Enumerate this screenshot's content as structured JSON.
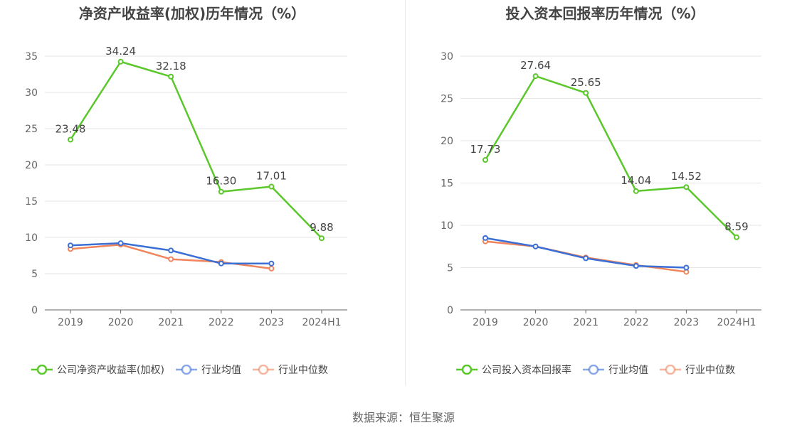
{
  "footer": "数据来源：恒生聚源",
  "chart_data": [
    {
      "type": "line",
      "title": "净资产收益率(加权)历年情况（%）",
      "categories": [
        "2019",
        "2020",
        "2021",
        "2022",
        "2023",
        "2024H1"
      ],
      "ylim": [
        0,
        35
      ],
      "yticks": [
        0,
        5,
        10,
        15,
        20,
        25,
        30,
        35
      ],
      "grid": true,
      "legend_position": "bottom",
      "series": [
        {
          "name": "公司净资产收益率(加权)",
          "color": "#5ac72a",
          "values": [
            23.48,
            34.24,
            32.18,
            16.3,
            17.01,
            9.88
          ],
          "labels": [
            "23.48",
            "34.24",
            "32.18",
            "16.30",
            "17.01",
            "9.88"
          ]
        },
        {
          "name": "行业均值",
          "color": "#3a6fd6",
          "values": [
            8.9,
            9.2,
            8.2,
            6.4,
            6.4,
            null
          ]
        },
        {
          "name": "行业中位数",
          "color": "#f0845a",
          "values": [
            8.4,
            9.0,
            7.0,
            6.6,
            5.7,
            null
          ]
        }
      ]
    },
    {
      "type": "line",
      "title": "投入资本回报率历年情况（%）",
      "categories": [
        "2019",
        "2020",
        "2021",
        "2022",
        "2023",
        "2024H1"
      ],
      "ylim": [
        0,
        30
      ],
      "yticks": [
        0,
        5,
        10,
        15,
        20,
        25,
        30
      ],
      "grid": true,
      "legend_position": "bottom",
      "series": [
        {
          "name": "公司投入资本回报率",
          "color": "#5ac72a",
          "values": [
            17.73,
            27.64,
            25.65,
            14.04,
            14.52,
            8.59
          ],
          "labels": [
            "17.73",
            "27.64",
            "25.65",
            "14.04",
            "14.52",
            "8.59"
          ]
        },
        {
          "name": "行业均值",
          "color": "#3a6fd6",
          "values": [
            8.5,
            7.5,
            6.1,
            5.2,
            5.0,
            null
          ]
        },
        {
          "name": "行业中位数",
          "color": "#f0845a",
          "values": [
            8.1,
            7.5,
            6.2,
            5.3,
            4.5,
            null
          ]
        }
      ]
    }
  ]
}
